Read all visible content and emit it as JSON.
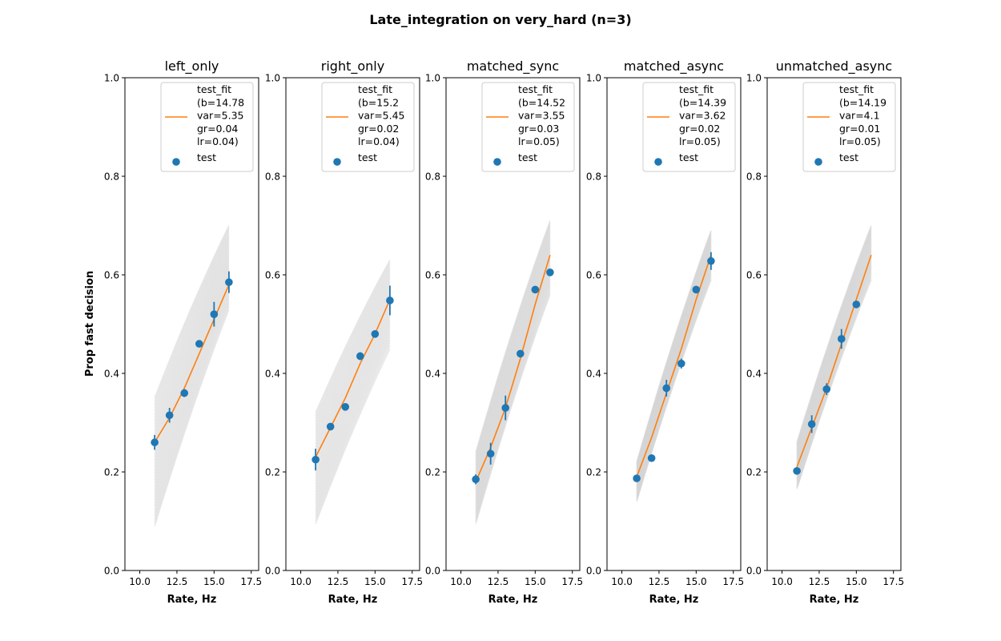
{
  "figure": {
    "title": "Late_integration on very_hard (n=3)",
    "ylabel": "Prop fast decision",
    "xlabel": "Rate, Hz"
  },
  "colors": {
    "fit": "#ff7f0e",
    "points": "#1f77b4",
    "bootstrap": "#d3d3d3"
  },
  "chart_data": [
    {
      "type": "line",
      "title": "left_only",
      "xlabel": "Rate, Hz",
      "ylabel": "Prop fast decision",
      "xlim": [
        9,
        18
      ],
      "ylim": [
        0,
        1
      ],
      "xticks": [
        "10.0",
        "12.5",
        "15.0",
        "17.5"
      ],
      "yticks": [
        "0.0",
        "0.2",
        "0.4",
        "0.6",
        "0.8",
        "1.0"
      ],
      "legend": {
        "position": "top-right",
        "fit_label": [
          "test_fit",
          "(b=14.78",
          "var=5.35",
          "gr=0.04",
          "lr=0.04)"
        ],
        "points_label": "test"
      },
      "fit": {
        "x": [
          11,
          12,
          13,
          14,
          15,
          16
        ],
        "y": [
          0.26,
          0.31,
          0.37,
          0.44,
          0.51,
          0.58
        ]
      },
      "points": [
        {
          "x": 11,
          "y": 0.26,
          "err": 0.015
        },
        {
          "x": 12,
          "y": 0.315,
          "err": 0.015
        },
        {
          "x": 13,
          "y": 0.36,
          "err": 0.008
        },
        {
          "x": 14,
          "y": 0.46,
          "err": 0.005
        },
        {
          "x": 15,
          "y": 0.52,
          "err": 0.025
        },
        {
          "x": 16,
          "y": 0.585,
          "err": 0.022
        }
      ],
      "bootstrap": {
        "start": [
          0.09,
          0.35
        ],
        "end": [
          0.53,
          0.7
        ]
      }
    },
    {
      "type": "line",
      "title": "right_only",
      "xlabel": "Rate, Hz",
      "xlim": [
        9,
        18
      ],
      "ylim": [
        0,
        1
      ],
      "xticks": [
        "10.0",
        "12.5",
        "15.0",
        "17.5"
      ],
      "yticks": [
        "0.0",
        "0.2",
        "0.4",
        "0.6",
        "0.8",
        "1.0"
      ],
      "legend": {
        "position": "top-right",
        "fit_label": [
          "test_fit",
          "(b=15.2",
          "var=5.45",
          "gr=0.02",
          "lr=0.04)"
        ],
        "points_label": "test"
      },
      "fit": {
        "x": [
          11,
          12,
          13,
          14,
          15,
          16
        ],
        "y": [
          0.23,
          0.29,
          0.35,
          0.42,
          0.48,
          0.55
        ]
      },
      "points": [
        {
          "x": 11,
          "y": 0.225,
          "err": 0.022
        },
        {
          "x": 12,
          "y": 0.292,
          "err": 0.005
        },
        {
          "x": 13,
          "y": 0.332,
          "err": 0.006
        },
        {
          "x": 14,
          "y": 0.435,
          "err": 0.008
        },
        {
          "x": 15,
          "y": 0.48,
          "err": 0.005
        },
        {
          "x": 16,
          "y": 0.548,
          "err": 0.03
        }
      ],
      "bootstrap": {
        "start": [
          0.095,
          0.32
        ],
        "end": [
          0.45,
          0.63
        ]
      }
    },
    {
      "type": "line",
      "title": "matched_sync",
      "xlabel": "Rate, Hz",
      "xlim": [
        9,
        18
      ],
      "ylim": [
        0,
        1
      ],
      "xticks": [
        "10.0",
        "12.5",
        "15.0",
        "17.5"
      ],
      "yticks": [
        "0.0",
        "0.2",
        "0.4",
        "0.6",
        "0.8",
        "1.0"
      ],
      "legend": {
        "position": "top-right",
        "fit_label": [
          "test_fit",
          "(b=14.52",
          "var=3.55",
          "gr=0.03",
          "lr=0.05)"
        ],
        "points_label": "test"
      },
      "fit": {
        "x": [
          11,
          12,
          13,
          14,
          15,
          16
        ],
        "y": [
          0.18,
          0.25,
          0.33,
          0.43,
          0.54,
          0.64
        ]
      },
      "points": [
        {
          "x": 11,
          "y": 0.185,
          "err": 0.01
        },
        {
          "x": 12,
          "y": 0.237,
          "err": 0.022
        },
        {
          "x": 13,
          "y": 0.33,
          "err": 0.025
        },
        {
          "x": 14,
          "y": 0.44,
          "err": 0.007
        },
        {
          "x": 15,
          "y": 0.57,
          "err": 0.004
        },
        {
          "x": 16,
          "y": 0.605,
          "err": 0.004
        }
      ],
      "bootstrap": {
        "start": [
          0.095,
          0.24
        ],
        "end": [
          0.56,
          0.71
        ]
      }
    },
    {
      "type": "line",
      "title": "matched_async",
      "xlabel": "Rate, Hz",
      "xlim": [
        9,
        18
      ],
      "ylim": [
        0,
        1
      ],
      "xticks": [
        "10.0",
        "12.5",
        "15.0",
        "17.5"
      ],
      "yticks": [
        "0.0",
        "0.2",
        "0.4",
        "0.6",
        "0.8",
        "1.0"
      ],
      "legend": {
        "position": "top-right",
        "fit_label": [
          "test_fit",
          "(b=14.39",
          "var=3.62",
          "gr=0.02",
          "lr=0.05)"
        ],
        "points_label": "test"
      },
      "fit": {
        "x": [
          11,
          12,
          13,
          14,
          15,
          16
        ],
        "y": [
          0.19,
          0.27,
          0.36,
          0.45,
          0.55,
          0.64
        ]
      },
      "points": [
        {
          "x": 11,
          "y": 0.187,
          "err": 0.005
        },
        {
          "x": 12,
          "y": 0.228,
          "err": 0.004
        },
        {
          "x": 13,
          "y": 0.37,
          "err": 0.017
        },
        {
          "x": 14,
          "y": 0.42,
          "err": 0.01
        },
        {
          "x": 15,
          "y": 0.57,
          "err": 0.005
        },
        {
          "x": 16,
          "y": 0.628,
          "err": 0.018
        }
      ],
      "bootstrap": {
        "start": [
          0.14,
          0.22
        ],
        "end": [
          0.59,
          0.69
        ]
      }
    },
    {
      "type": "line",
      "title": "unmatched_async",
      "xlabel": "Rate, Hz",
      "xlim": [
        9,
        18
      ],
      "ylim": [
        0,
        1
      ],
      "xticks": [
        "10.0",
        "12.5",
        "15.0",
        "17.5"
      ],
      "yticks": [
        "0.0",
        "0.2",
        "0.4",
        "0.6",
        "0.8",
        "1.0"
      ],
      "legend": {
        "position": "top-right",
        "fit_label": [
          "test_fit",
          "(b=14.19",
          "var=4.1",
          "gr=0.01",
          "lr=0.05)"
        ],
        "points_label": "test"
      },
      "fit": {
        "x": [
          11,
          12,
          13,
          14,
          15,
          16
        ],
        "y": [
          0.21,
          0.29,
          0.37,
          0.46,
          0.55,
          0.64
        ]
      },
      "points": [
        {
          "x": 11,
          "y": 0.202,
          "err": 0.004
        },
        {
          "x": 12,
          "y": 0.297,
          "err": 0.018
        },
        {
          "x": 13,
          "y": 0.368,
          "err": 0.012
        },
        {
          "x": 14,
          "y": 0.47,
          "err": 0.02
        },
        {
          "x": 15,
          "y": 0.54,
          "err": 0.006
        }
      ],
      "bootstrap": {
        "start": [
          0.165,
          0.26
        ],
        "end": [
          0.59,
          0.7
        ]
      }
    }
  ]
}
